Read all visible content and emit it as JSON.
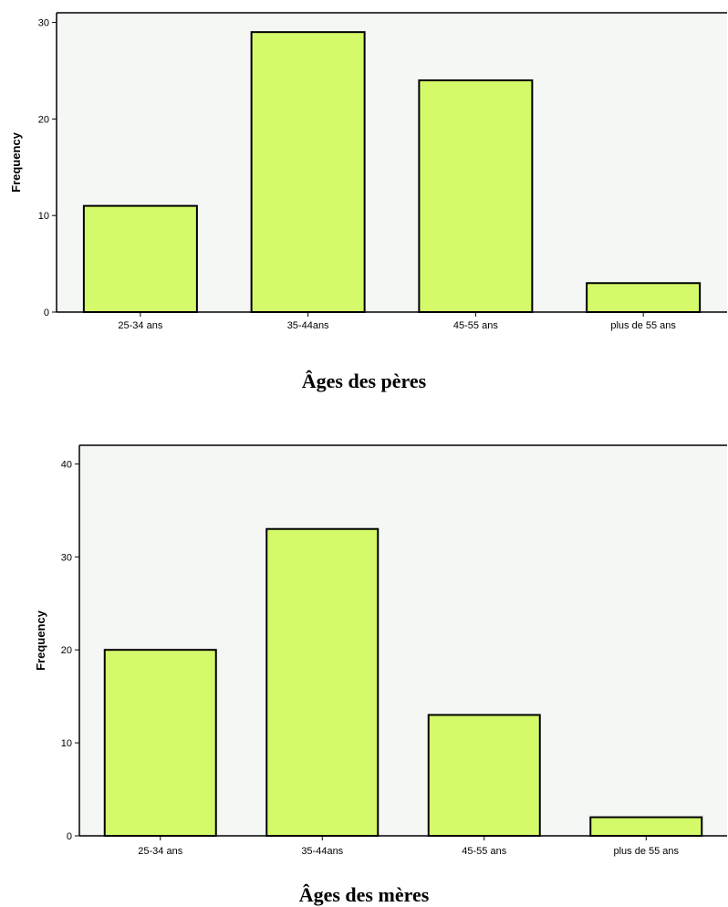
{
  "chart_data": [
    {
      "type": "bar",
      "title": "",
      "xlabel": "",
      "ylabel": "Frequency",
      "caption": "Âges des pères",
      "categories": [
        "25-34 ans",
        "35-44ans",
        "45-55 ans",
        "plus de 55 ans"
      ],
      "values": [
        11,
        29,
        24,
        3
      ],
      "ylim": [
        0,
        31
      ],
      "yticks": [
        0,
        10,
        20,
        30
      ],
      "bar_color": "#d4fa6a",
      "plot_bg": "#f5f7f5",
      "grid": false
    },
    {
      "type": "bar",
      "title": "",
      "xlabel": "",
      "ylabel": "Frequency",
      "caption": "Âges des mères",
      "categories": [
        "25-34 ans",
        "35-44ans",
        "45-55 ans",
        "plus de 55 ans"
      ],
      "values": [
        20,
        33,
        13,
        2
      ],
      "ylim": [
        0,
        42
      ],
      "yticks": [
        0,
        10,
        20,
        30,
        40
      ],
      "bar_color": "#d4fa6a",
      "plot_bg": "#f5f7f5",
      "grid": false
    }
  ]
}
